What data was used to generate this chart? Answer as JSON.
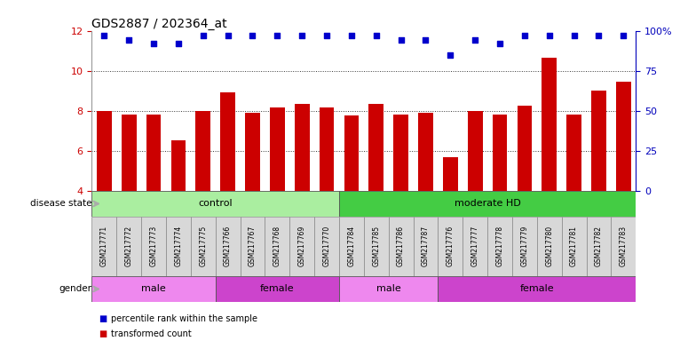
{
  "title": "GDS2887 / 202364_at",
  "samples": [
    "GSM217771",
    "GSM217772",
    "GSM217773",
    "GSM217774",
    "GSM217775",
    "GSM217766",
    "GSM217767",
    "GSM217768",
    "GSM217769",
    "GSM217770",
    "GSM217784",
    "GSM217785",
    "GSM217786",
    "GSM217787",
    "GSM217776",
    "GSM217777",
    "GSM217778",
    "GSM217779",
    "GSM217780",
    "GSM217781",
    "GSM217782",
    "GSM217783"
  ],
  "bar_values": [
    8.0,
    7.8,
    7.8,
    6.55,
    8.0,
    8.9,
    7.9,
    8.15,
    8.35,
    8.15,
    7.75,
    8.35,
    7.8,
    7.9,
    5.7,
    8.0,
    7.8,
    8.25,
    10.65,
    7.8,
    9.0,
    9.45
  ],
  "dot_values": [
    11.75,
    11.55,
    11.35,
    11.35,
    11.75,
    11.75,
    11.75,
    11.75,
    11.75,
    11.75,
    11.75,
    11.75,
    11.55,
    11.55,
    10.8,
    11.55,
    11.35,
    11.75,
    11.75,
    11.75,
    11.75,
    11.75
  ],
  "bar_color": "#cc0000",
  "dot_color": "#0000cc",
  "ylim": [
    4,
    12
  ],
  "yticks": [
    4,
    6,
    8,
    10,
    12
  ],
  "ytick_labels": [
    "4",
    "6",
    "8",
    "10",
    "12"
  ],
  "y2ticks_pct": [
    0,
    25,
    50,
    75,
    100
  ],
  "y2tick_labels": [
    "0",
    "25",
    "50",
    "75",
    "100%"
  ],
  "dotted_lines": [
    6,
    8,
    10
  ],
  "disease_state_groups": [
    {
      "label": "control",
      "start": 0,
      "end": 9,
      "color": "#aaeea0"
    },
    {
      "label": "moderate HD",
      "start": 10,
      "end": 21,
      "color": "#44cc44"
    }
  ],
  "gender_groups": [
    {
      "label": "male",
      "start": 0,
      "end": 4,
      "color": "#ee88ee"
    },
    {
      "label": "female",
      "start": 5,
      "end": 9,
      "color": "#cc44cc"
    },
    {
      "label": "male",
      "start": 10,
      "end": 13,
      "color": "#ee88ee"
    },
    {
      "label": "female",
      "start": 14,
      "end": 21,
      "color": "#cc44cc"
    }
  ],
  "legend_items": [
    {
      "label": "transformed count",
      "color": "#cc0000"
    },
    {
      "label": "percentile rank within the sample",
      "color": "#0000cc"
    }
  ],
  "disease_label": "disease state",
  "gender_label": "gender",
  "bg_color": "#ffffff",
  "tick_label_color_left": "#cc0000",
  "tick_label_color_right": "#0000bb",
  "xtick_bg": "#d8d8d8",
  "arrow_color": "#aaaaaa"
}
